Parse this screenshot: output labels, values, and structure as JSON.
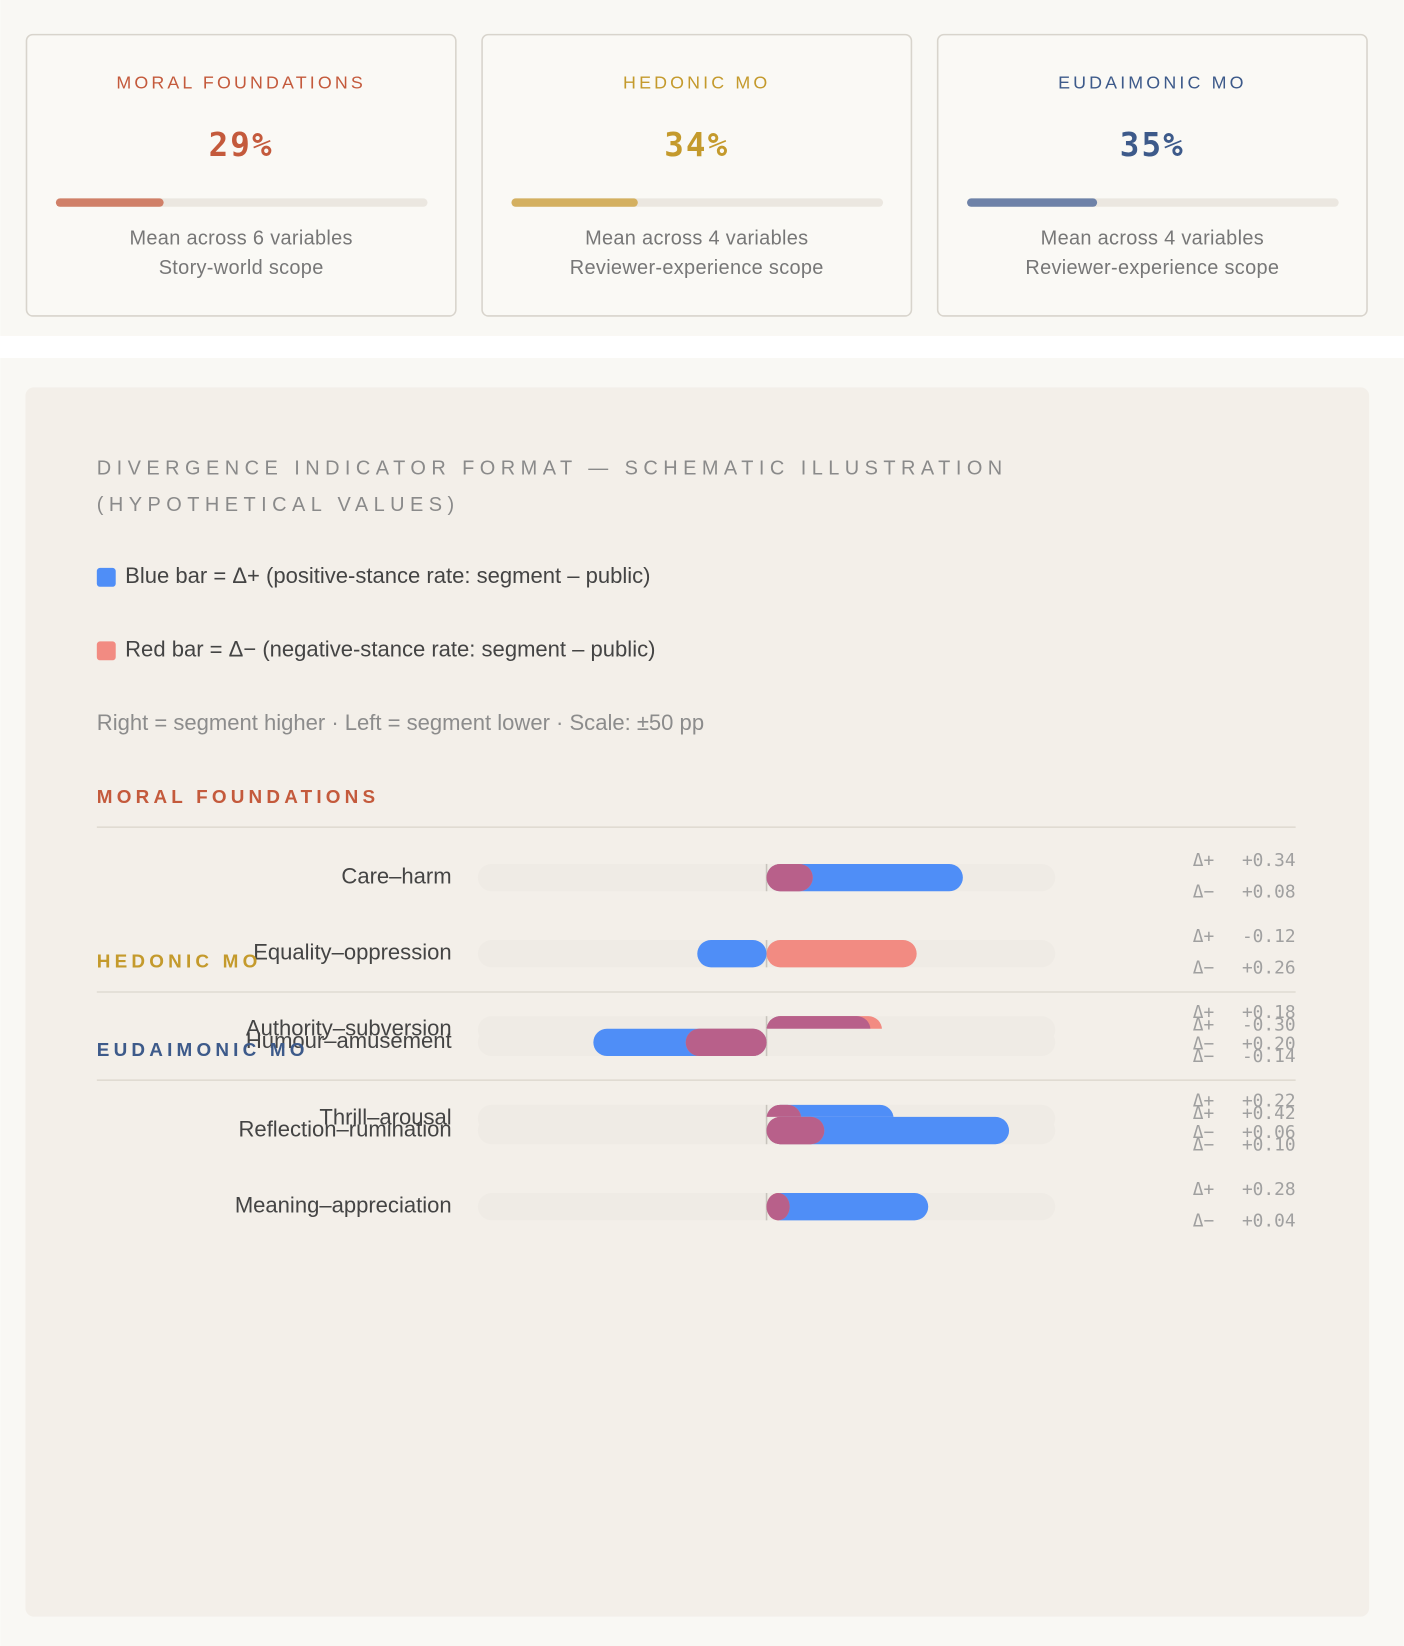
{
  "cards": [
    {
      "title": "MORAL FOUNDATIONS",
      "value": 29,
      "value_label": "29%",
      "lines": [
        "Mean across 6 variables",
        "Story-world scope"
      ],
      "color": "#c45a3c",
      "bar_color": "#d08068"
    },
    {
      "title": "HEDONIC MO",
      "value": 34,
      "value_label": "34%",
      "lines": [
        "Mean across 4 variables",
        "Reviewer-experience scope"
      ],
      "color": "#c49a2c",
      "bar_color": "#d4b060"
    },
    {
      "title": "EUDAIMONIC MO",
      "value": 35,
      "value_label": "35%",
      "lines": [
        "Mean across 4 variables",
        "Reviewer-experience scope"
      ],
      "color": "#3d5a8a",
      "bar_color": "#6e82a8"
    }
  ],
  "panel": {
    "title_lines": [
      "DIVERGENCE INDICATOR FORMAT — SCHEMATIC ILLUSTRATION",
      "(HYPOTHETICAL VALUES)"
    ],
    "legend": [
      {
        "text": "Blue bar = Δ+ (positive-stance rate: segment – public)",
        "color": "#4f8ef7"
      },
      {
        "text": "Red bar = Δ− (negative-stance rate: segment – public)",
        "color": "#f28b82"
      }
    ],
    "note": "Right = segment higher · Left = segment lower · Scale: ±50 pp",
    "xlim": [
      -0.5,
      0.5
    ],
    "plus_symbol": "Δ+",
    "minus_symbol": "Δ−",
    "groups": [
      {
        "name": "MORAL FOUNDATIONS",
        "color": "#c45a3c",
        "rows": [
          {
            "label": "Care–harm",
            "plus": 0.34,
            "plus_label": "+0.34",
            "minus": 0.08,
            "minus_label": "+0.08"
          },
          {
            "label": "Equality–oppression",
            "plus": -0.12,
            "plus_label": "-0.12",
            "minus": 0.26,
            "minus_label": "+0.26"
          },
          {
            "label": "Authority–subversion",
            "plus": 0.18,
            "plus_label": "+0.18",
            "minus": 0.2,
            "minus_label": "+0.20"
          }
        ]
      },
      {
        "name": "HEDONIC MO",
        "color": "#c49a2c",
        "rows": [
          {
            "label": "Humour–amusement",
            "plus": -0.3,
            "plus_label": "-0.30",
            "minus": -0.14,
            "minus_label": "-0.14"
          },
          {
            "label": "Thrill–arousal",
            "plus": 0.22,
            "plus_label": "+0.22",
            "minus": 0.06,
            "minus_label": "+0.06"
          }
        ]
      },
      {
        "name": "EUDAIMONIC MO",
        "color": "#3d5a8a",
        "rows": [
          {
            "label": "Reflection–rumination",
            "plus": 0.42,
            "plus_label": "+0.42",
            "minus": 0.1,
            "minus_label": "+0.10"
          },
          {
            "label": "Meaning–appreciation",
            "plus": 0.28,
            "plus_label": "+0.28",
            "minus": 0.04,
            "minus_label": "+0.04"
          }
        ]
      }
    ]
  }
}
